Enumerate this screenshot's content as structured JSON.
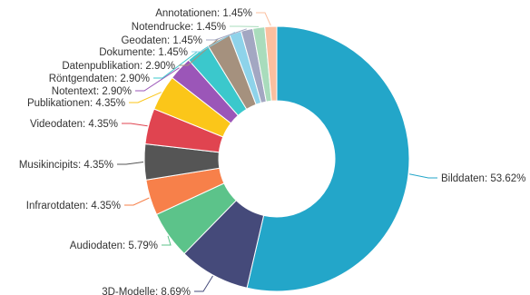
{
  "chart_data": {
    "type": "pie",
    "donut": true,
    "start_angle_deg": 0,
    "direction": "clockwise",
    "label_format": "{name}: {value}%",
    "slices": [
      {
        "name": "Bilddaten",
        "value": 53.62,
        "color": "#23a6c9"
      },
      {
        "name": "3D-Modelle",
        "value": 8.69,
        "color": "#454a7a"
      },
      {
        "name": "Audiodaten",
        "value": 5.79,
        "color": "#5cc38a"
      },
      {
        "name": "Infrarotdaten",
        "value": 4.35,
        "color": "#f7804a"
      },
      {
        "name": "Musikincipits",
        "value": 4.35,
        "color": "#555555"
      },
      {
        "name": "Videodaten",
        "value": 4.35,
        "color": "#e04450"
      },
      {
        "name": "Publikationen",
        "value": 4.35,
        "color": "#fbc619"
      },
      {
        "name": "Notentext",
        "value": 2.9,
        "color": "#9b56b8"
      },
      {
        "name": "Röntgendaten",
        "value": 2.9,
        "color": "#3bc8cc"
      },
      {
        "name": "Datenpublikation",
        "value": 2.9,
        "color": "#a5917e"
      },
      {
        "name": "Dokumente",
        "value": 1.45,
        "color": "#8ed3ea"
      },
      {
        "name": "Geodaten",
        "value": 1.45,
        "color": "#a3a7c2"
      },
      {
        "name": "Notendrucke",
        "value": 1.45,
        "color": "#a9dcbc"
      },
      {
        "name": "Annotationen",
        "value": 1.45,
        "color": "#fbbf9f"
      }
    ]
  }
}
